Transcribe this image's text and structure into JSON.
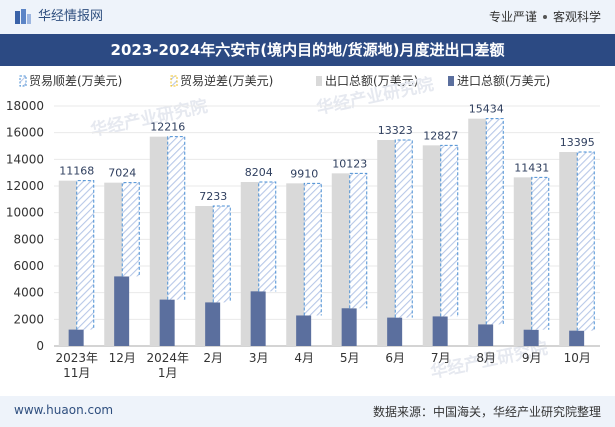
{
  "header": {
    "brand": "华经情报网",
    "tags": [
      "专业严谨",
      "客观科学"
    ]
  },
  "footer": {
    "url": "www.huaon.com",
    "source": "数据来源：中国海关，华经产业研究院整理"
  },
  "watermark": "华经产业研究院",
  "colors": {
    "export": "#d9d9d9",
    "import": "#5b6f9e",
    "surplus_stroke": "#4a8fd4",
    "deficit_stroke": "#f0c020",
    "hatch": "#b8c8e8",
    "title_bg": "#2c4a83"
  },
  "chart_data": {
    "type": "bar",
    "title": "2023-2024年六安市(境内目的地/货源地)月度进出口差额",
    "categories": [
      [
        "2023年",
        "11月"
      ],
      [
        "12月"
      ],
      [
        "2024年",
        "1月"
      ],
      [
        "2月"
      ],
      [
        "3月"
      ],
      [
        "4月"
      ],
      [
        "5月"
      ],
      [
        "6月"
      ],
      [
        "7月"
      ],
      [
        "8月"
      ],
      [
        "9月"
      ],
      [
        "10月"
      ]
    ],
    "legend": [
      "贸易顺差(万美元)",
      "贸易逆差(万美元)",
      "出口总额(万美元)",
      "进口总额(万美元)"
    ],
    "series": [
      {
        "name": "出口总额(万美元)",
        "values": [
          12400,
          12250,
          15700,
          10500,
          12300,
          12200,
          12950,
          15450,
          15050,
          17050,
          12650,
          14550
        ]
      },
      {
        "name": "进口总额(万美元)",
        "values": [
          1230,
          5220,
          3480,
          3270,
          4100,
          2290,
          2830,
          2130,
          2220,
          1620,
          1220,
          1150
        ]
      },
      {
        "name": "贸易顺差(万美元)",
        "values": [
          11168,
          7024,
          12216,
          7233,
          8204,
          9910,
          10123,
          13323,
          12827,
          15434,
          11431,
          13395
        ]
      }
    ],
    "ylim": [
      0,
      18000
    ],
    "yticks": [
      0,
      2000,
      4000,
      6000,
      8000,
      10000,
      12000,
      14000,
      16000,
      18000
    ],
    "legend_position": "top"
  }
}
